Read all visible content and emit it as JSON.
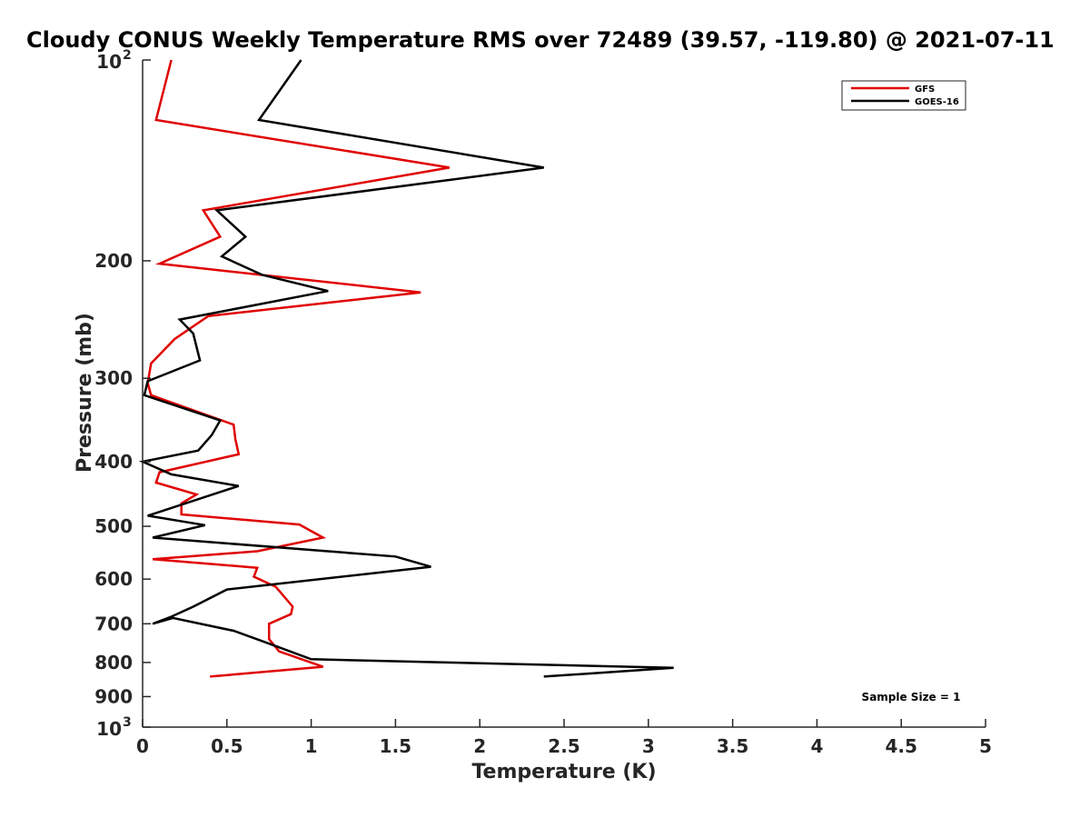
{
  "chart_data": {
    "type": "line",
    "title": "Cloudy CONUS Weekly Temperature RMS over 72489 (39.57, -119.80) @ 2021-07-11",
    "xlabel": "Temperature (K)",
    "ylabel": "Pressure (mb)",
    "xlim": [
      0,
      5
    ],
    "ylim": [
      100,
      1000
    ],
    "y_scale": "log",
    "y_reversed": true,
    "grid": false,
    "legend_position": "top-right",
    "x_ticks": [
      "0",
      "0.5",
      "1",
      "1.5",
      "2",
      "2.5",
      "3",
      "3.5",
      "4",
      "4.5",
      "5"
    ],
    "y_ticks": [
      {
        "value": 100,
        "base": "10",
        "exp": "2"
      },
      {
        "value": 200,
        "label": "200"
      },
      {
        "value": 300,
        "label": "300"
      },
      {
        "value": 400,
        "label": "400"
      },
      {
        "value": 500,
        "label": "500"
      },
      {
        "value": 600,
        "label": "600"
      },
      {
        "value": 700,
        "label": "700"
      },
      {
        "value": 800,
        "label": "800"
      },
      {
        "value": 900,
        "label": "900"
      },
      {
        "value": 1000,
        "base": "10",
        "exp": "3"
      }
    ],
    "annotation": "Sample Size = 1",
    "series": [
      {
        "name": "GFS",
        "color": "#e00000",
        "x": [
          0.17,
          0.08,
          1.82,
          0.36,
          0.46,
          0.1,
          1.65,
          0.39,
          0.19,
          0.05,
          0.03,
          0.05,
          0.54,
          0.55,
          0.57,
          0.1,
          0.08,
          0.32,
          0.23,
          0.23,
          0.93,
          1.07,
          0.68,
          0.06,
          0.68,
          0.66,
          0.79,
          0.89,
          0.88,
          0.75,
          0.75,
          0.81,
          1.07,
          0.4
        ],
        "y": [
          100,
          123,
          145,
          168,
          184,
          202,
          223,
          242,
          262,
          285,
          305,
          318,
          352,
          370,
          390,
          415,
          430,
          448,
          462,
          480,
          497,
          520,
          545,
          560,
          577,
          595,
          616,
          660,
          677,
          700,
          738,
          770,
          812,
          840
        ]
      },
      {
        "name": "GOES-16",
        "color": "#000000",
        "x": [
          0.94,
          0.69,
          2.38,
          0.44,
          0.61,
          0.47,
          0.71,
          1.1,
          0.22,
          0.3,
          0.34,
          0.03,
          0.01,
          0.46,
          0.41,
          0.33,
          0.0,
          0.17,
          0.57,
          0.03,
          0.37,
          0.06,
          1.5,
          1.71,
          0.5,
          0.3,
          0.17,
          0.06,
          0.18,
          0.54,
          0.74,
          1.0,
          3.15,
          2.38
        ],
        "y": [
          100,
          123,
          145,
          168,
          184,
          197,
          210,
          222,
          245,
          257,
          282,
          303,
          318,
          347,
          365,
          385,
          400,
          418,
          435,
          482,
          498,
          520,
          555,
          575,
          622,
          660,
          683,
          700,
          686,
          717,
          748,
          791,
          815,
          840
        ]
      }
    ]
  }
}
